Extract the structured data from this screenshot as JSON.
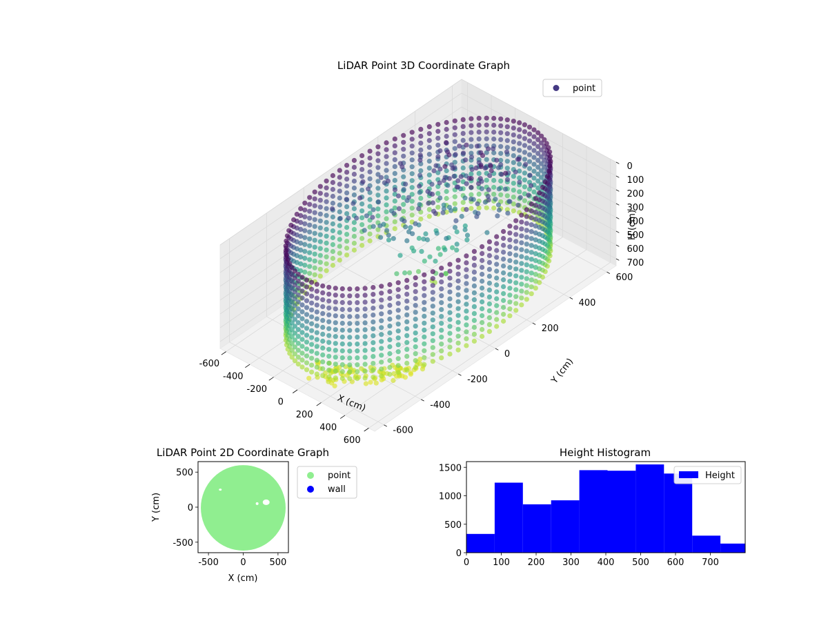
{
  "chart_data": [
    {
      "type": "scatter",
      "projection": "3d",
      "title": "LiDAR Point 3D Coordinate Graph",
      "xlabel": "X (cm)",
      "ylabel": "Y (cm)",
      "zlabel": "H (cm)",
      "xlim": [
        -650,
        650
      ],
      "ylim": [
        -650,
        650
      ],
      "zlim": [
        0,
        750
      ],
      "z_inverted": true,
      "xticks": [
        -600,
        -400,
        -200,
        0,
        200,
        400,
        600
      ],
      "yticks": [
        -600,
        -400,
        -200,
        0,
        200,
        400,
        600
      ],
      "zticks": [
        0,
        100,
        200,
        300,
        400,
        500,
        600,
        700
      ],
      "colormap": "viridis",
      "legend": {
        "placement": "top-right",
        "entries": [
          {
            "label": "point",
            "color": "#443983"
          }
        ]
      },
      "series": [
        {
          "name": "point",
          "wall": {
            "radius": 600,
            "h_range": [
              0,
              650
            ],
            "angles": 96,
            "levels": 14
          },
          "floor_patch": {
            "radius_range": [
              480,
              600
            ],
            "angle_range_deg": [
              -95,
              -30
            ],
            "h": 720
          },
          "interior_rays": {
            "count": 16,
            "h_range": [
              100,
              650
            ]
          }
        }
      ]
    },
    {
      "type": "scatter",
      "title": "LiDAR Point 2D Coordinate Graph",
      "xlabel": "X (cm)",
      "ylabel": "Y (cm)",
      "xlim": [
        -650,
        650
      ],
      "ylim": [
        -650,
        650
      ],
      "xticks": [
        -500,
        0,
        500
      ],
      "yticks": [
        -500,
        0,
        500
      ],
      "disk_radius": 610,
      "legend": {
        "placement": "outside-right",
        "entries": [
          {
            "label": "point",
            "color": "#90ee90"
          },
          {
            "label": "wall",
            "color": "#0000ff"
          }
        ]
      }
    },
    {
      "type": "bar",
      "title": "Height Histogram",
      "xlim": [
        0,
        800
      ],
      "ylim": [
        0,
        1600
      ],
      "xticks": [
        0,
        100,
        200,
        300,
        400,
        500,
        600,
        700
      ],
      "yticks": [
        0,
        500,
        1000,
        1500
      ],
      "bin_edges": [
        0,
        81,
        162,
        243,
        324,
        405,
        486,
        567,
        648,
        729,
        810
      ],
      "series": [
        {
          "name": "Height",
          "color": "#0000ff",
          "values": [
            330,
            1230,
            850,
            920,
            1450,
            1440,
            1550,
            1390,
            300,
            160
          ]
        }
      ],
      "legend": {
        "placement": "top-right"
      }
    }
  ]
}
